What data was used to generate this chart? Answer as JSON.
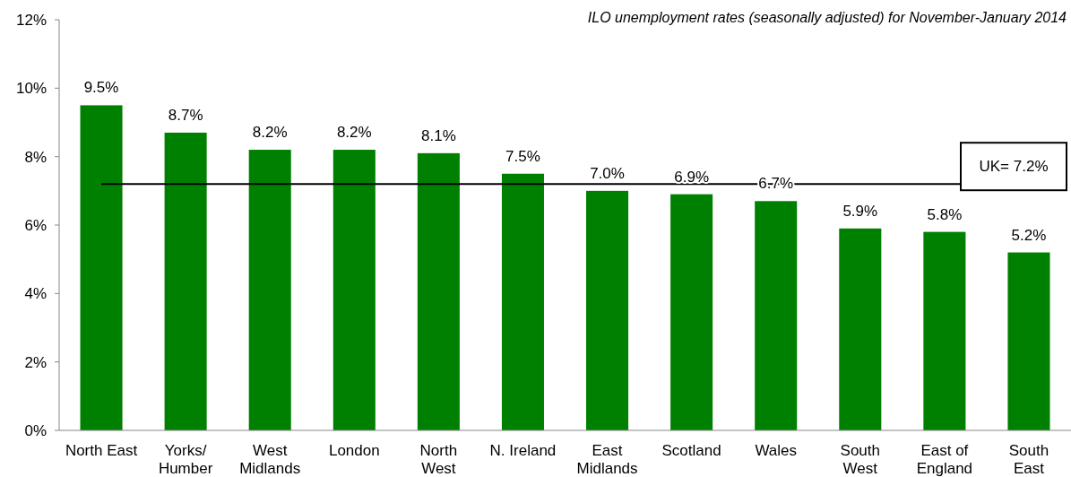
{
  "chart_data": {
    "type": "bar",
    "title": "ILO unemployment rates (seasonally adjusted) for  November-January 2014",
    "categories": [
      "North East",
      "Yorks/\nHumber",
      "West\nMidlands",
      "London",
      "North\nWest",
      "N. Ireland",
      "East\nMidlands",
      "Scotland",
      "Wales",
      "South\nWest",
      "East of\nEngland",
      "South\nEast"
    ],
    "values": [
      9.5,
      8.7,
      8.2,
      8.2,
      8.1,
      7.5,
      7.0,
      6.9,
      6.7,
      5.9,
      5.8,
      5.2
    ],
    "value_labels": [
      "9.5%",
      "8.7%",
      "8.2%",
      "8.2%",
      "8.1%",
      "7.5%",
      "7.0%",
      "6.9%",
      "6.7%",
      "5.9%",
      "5.8%",
      "5.2%"
    ],
    "color": "#008000",
    "ylim": [
      0,
      12
    ],
    "yticks": [
      {
        "value": 0,
        "label": "0%"
      },
      {
        "value": 2,
        "label": "2%"
      },
      {
        "value": 4,
        "label": "4%"
      },
      {
        "value": 6,
        "label": "6%"
      },
      {
        "value": 8,
        "label": "8%"
      },
      {
        "value": 10,
        "label": "10%"
      },
      {
        "value": 12,
        "label": "12%"
      }
    ],
    "ref_lines": [
      {
        "axis": "y",
        "value": 7.2,
        "label": "UK= 7.2%",
        "color": "#000000"
      }
    ],
    "grid": false
  }
}
